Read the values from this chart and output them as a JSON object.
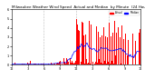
{
  "title": "Milwaukee Weather Wind Speed  Actual and Median  by Minute  (24 Hours) (Old)",
  "bg_color": "#ffffff",
  "actual_color": "#ff0000",
  "median_color": "#0000ff",
  "legend_actual": "Actual",
  "legend_median": "Median",
  "ylim": [
    0,
    6
  ],
  "n_points": 1440,
  "seed": 42,
  "title_fontsize": 3.0,
  "tick_fontsize": 2.5,
  "yticks": [
    0,
    1,
    2,
    3,
    4,
    5,
    6
  ],
  "xtick_pos": [
    0,
    180,
    360,
    540,
    720,
    900,
    1080,
    1260,
    1440
  ],
  "xtick_labels": [
    "12",
    "3",
    "6",
    "9",
    "12",
    "3",
    "6",
    "9",
    "12"
  ],
  "vlines": [
    360,
    720,
    1080
  ]
}
